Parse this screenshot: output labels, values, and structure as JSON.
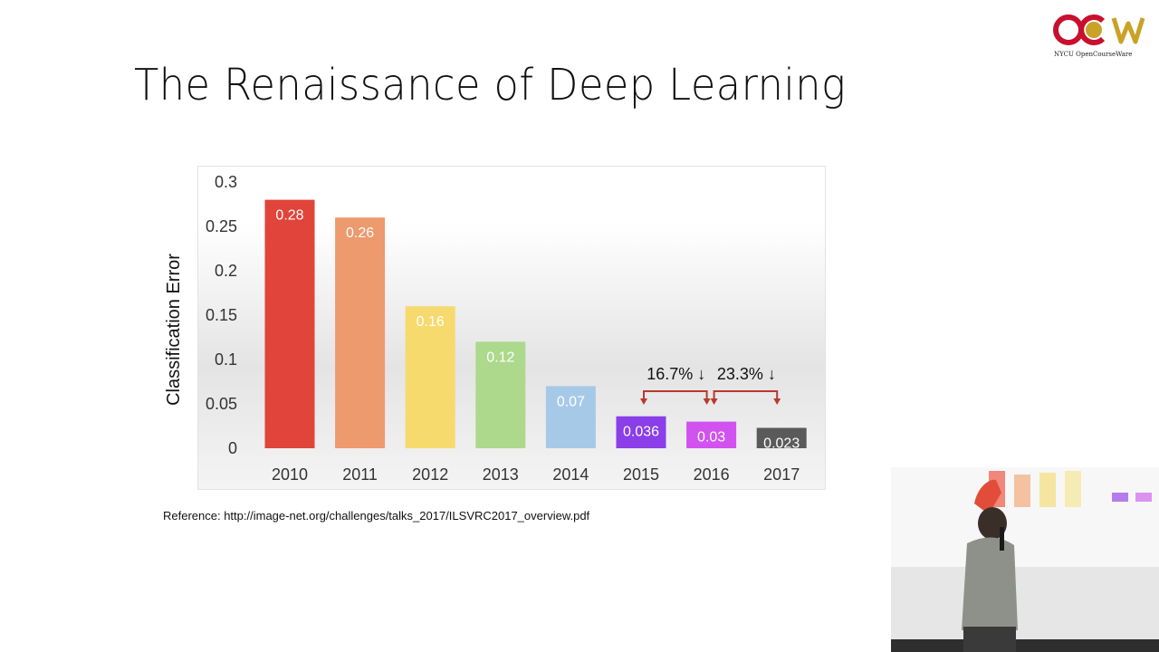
{
  "slide": {
    "title": "The Renaissance of Deep Learning",
    "reference": "Reference: http://image-net.org/challenges/talks_2017/ILSVRC2017_overview.pdf"
  },
  "logo": {
    "text": "OCW",
    "caption": "NYCU OpenCourseWare",
    "colors": [
      "#c8102e",
      "#c9a227"
    ]
  },
  "chart_data": {
    "type": "bar",
    "title": "",
    "xlabel": "",
    "ylabel": "Classification Error",
    "ylim": [
      0,
      0.3
    ],
    "yticks": [
      "0.3",
      "0.25",
      "0.2",
      "0.15",
      "0.1",
      "0.05",
      "0"
    ],
    "yticks_values": [
      0.3,
      0.25,
      0.2,
      0.15,
      0.1,
      0.05,
      0
    ],
    "categories": [
      "2010",
      "2011",
      "2012",
      "2013",
      "2014",
      "2015",
      "2016",
      "2017"
    ],
    "values": [
      0.28,
      0.26,
      0.16,
      0.12,
      0.07,
      0.036,
      0.03,
      0.023
    ],
    "value_labels": [
      "0.28",
      "0.26",
      "0.16",
      "0.12",
      "0.07",
      "0.036",
      "0.03",
      "0.023"
    ],
    "colors": [
      "#e0443a",
      "#ec9a6e",
      "#f6da6e",
      "#acd98c",
      "#a7c9e8",
      "#8a3fe8",
      "#d152ef",
      "#5a5a5a"
    ],
    "grid": false,
    "legend": "none",
    "annotations": [
      {
        "text": "16.7% ↓",
        "from": "2015",
        "to": "2016"
      },
      {
        "text": "23.3% ↓",
        "from": "2016",
        "to": "2017"
      }
    ],
    "annotation_color": "#b73a2e"
  }
}
